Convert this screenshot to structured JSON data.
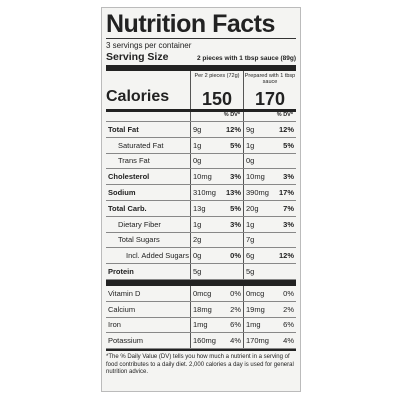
{
  "title": "Nutrition Facts",
  "servings": "3 servings per container",
  "serving_size": {
    "label": "Serving Size",
    "value": "2 pieces with 1 tbsp sauce (89g)"
  },
  "columns": [
    "Per 2 pieces (72g)",
    "Prepared with 1 tbsp sauce"
  ],
  "calories": {
    "label": "Calories",
    "values": [
      "150",
      "170"
    ]
  },
  "dv_header": "% DV*",
  "nutrients": [
    {
      "name": "Total Fat",
      "amount_1": "9g",
      "dv_1": "12%",
      "amount_2": "9g",
      "dv_2": "12%"
    },
    {
      "name": "Saturated Fat",
      "amount_1": "1g",
      "dv_1": "5%",
      "amount_2": "1g",
      "dv_2": "5%"
    },
    {
      "name": "Trans Fat",
      "amount_1": "0g",
      "amount_2": "0g"
    },
    {
      "name": "Cholesterol",
      "amount_1": "10mg",
      "dv_1": "3%",
      "amount_2": "10mg",
      "dv_2": "3%"
    },
    {
      "name": "Sodium",
      "amount_1": "310mg",
      "dv_1": "13%",
      "amount_2": "390mg",
      "dv_2": "17%"
    },
    {
      "name": "Total Carb.",
      "amount_1": "13g",
      "dv_1": "5%",
      "amount_2": "20g",
      "dv_2": "7%"
    },
    {
      "name": "Dietary Fiber",
      "amount_1": "1g",
      "dv_1": "3%",
      "amount_2": "1g",
      "dv_2": "3%"
    },
    {
      "name": "Total Sugars",
      "amount_1": "2g",
      "amount_2": "7g"
    },
    {
      "name": "Incl. Added Sugars",
      "amount_1": "0g",
      "dv_1": "0%",
      "amount_2": "6g",
      "dv_2": "12%"
    },
    {
      "name": "Protein",
      "amount_1": "5g",
      "amount_2": "5g"
    }
  ],
  "vitamins": [
    {
      "name": "Vitamin D",
      "amount_1": "0mcg",
      "dv_1": "0%",
      "amount_2": "0mcg",
      "dv_2": "0%"
    },
    {
      "name": "Calcium",
      "amount_1": "18mg",
      "dv_1": "2%",
      "amount_2": "19mg",
      "dv_2": "2%"
    },
    {
      "name": "Iron",
      "amount_1": "1mg",
      "dv_1": "6%",
      "amount_2": "1mg",
      "dv_2": "6%"
    },
    {
      "name": "Potassium",
      "amount_1": "160mg",
      "dv_1": "4%",
      "amount_2": "170mg",
      "dv_2": "4%"
    }
  ],
  "footnote": "*The % Daily Value (DV) tells you how much a nutrient in a serving of food contributes to a daily diet. 2,000 calories a day is used for general nutrition advice."
}
